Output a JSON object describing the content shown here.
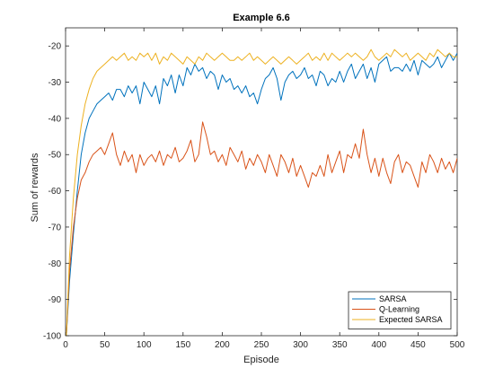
{
  "chart_data": {
    "type": "line",
    "title": "Example 6.6",
    "xlabel": "Episode",
    "ylabel": "Sum of rewards",
    "xlim": [
      0,
      500
    ],
    "ylim": [
      -100,
      -15
    ],
    "xticks": [
      0,
      50,
      100,
      150,
      200,
      250,
      300,
      350,
      400,
      450,
      500
    ],
    "yticks": [
      -100,
      -90,
      -80,
      -70,
      -60,
      -50,
      -40,
      -30,
      -20
    ],
    "grid": false,
    "legend_position": "bottom-right",
    "series": [
      {
        "name": "SARSA",
        "color": "#0072BD",
        "x": [
          1,
          5,
          10,
          15,
          20,
          25,
          30,
          35,
          40,
          45,
          50,
          55,
          60,
          65,
          70,
          75,
          80,
          85,
          90,
          95,
          100,
          105,
          110,
          115,
          120,
          125,
          130,
          135,
          140,
          145,
          150,
          155,
          160,
          165,
          170,
          175,
          180,
          185,
          190,
          195,
          200,
          205,
          210,
          215,
          220,
          225,
          230,
          235,
          240,
          245,
          250,
          255,
          260,
          265,
          270,
          275,
          280,
          285,
          290,
          295,
          300,
          305,
          310,
          315,
          320,
          325,
          330,
          335,
          340,
          345,
          350,
          355,
          360,
          365,
          370,
          375,
          380,
          385,
          390,
          395,
          400,
          405,
          410,
          415,
          420,
          425,
          430,
          435,
          440,
          445,
          450,
          455,
          460,
          465,
          470,
          475,
          480,
          485,
          490,
          495,
          500
        ],
        "y": [
          -100,
          -85,
          -72,
          -60,
          -50,
          -44,
          -40,
          -38,
          -36,
          -35,
          -34,
          -33,
          -35,
          -32,
          -32,
          -34,
          -31,
          -33,
          -31,
          -36,
          -30,
          -32,
          -34,
          -31,
          -36,
          -29,
          -31,
          -28,
          -33,
          -28,
          -31,
          -26,
          -28,
          -25,
          -27,
          -26,
          -29,
          -27,
          -28,
          -32,
          -28,
          -30,
          -29,
          -32,
          -31,
          -33,
          -31,
          -34,
          -33,
          -36,
          -32,
          -29,
          -28,
          -26,
          -29,
          -35,
          -30,
          -28,
          -27,
          -29,
          -28,
          -26,
          -29,
          -28,
          -31,
          -27,
          -28,
          -31,
          -29,
          -30,
          -27,
          -30,
          -27,
          -25,
          -29,
          -27,
          -25,
          -29,
          -26,
          -30,
          -25,
          -24,
          -23,
          -27,
          -26,
          -26,
          -27,
          -25,
          -27,
          -24,
          -28,
          -24,
          -25,
          -26,
          -25,
          -23,
          -26,
          -24,
          -22,
          -24,
          -22
        ]
      },
      {
        "name": "Q-Learning",
        "color": "#D95319",
        "x": [
          1,
          5,
          10,
          15,
          20,
          25,
          30,
          35,
          40,
          45,
          50,
          55,
          60,
          65,
          70,
          75,
          80,
          85,
          90,
          95,
          100,
          105,
          110,
          115,
          120,
          125,
          130,
          135,
          140,
          145,
          150,
          155,
          160,
          165,
          170,
          175,
          180,
          185,
          190,
          195,
          200,
          205,
          210,
          215,
          220,
          225,
          230,
          235,
          240,
          245,
          250,
          255,
          260,
          265,
          270,
          275,
          280,
          285,
          290,
          295,
          300,
          305,
          310,
          315,
          320,
          325,
          330,
          335,
          340,
          345,
          350,
          355,
          360,
          365,
          370,
          375,
          380,
          385,
          390,
          395,
          400,
          405,
          410,
          415,
          420,
          425,
          430,
          435,
          440,
          445,
          450,
          455,
          460,
          465,
          470,
          475,
          480,
          485,
          490,
          495,
          500
        ],
        "y": [
          -100,
          -82,
          -70,
          -62,
          -57,
          -55,
          -52,
          -50,
          -49,
          -48,
          -50,
          -47,
          -44,
          -50,
          -53,
          -49,
          -52,
          -50,
          -55,
          -50,
          -53,
          -51,
          -50,
          -52,
          -49,
          -53,
          -50,
          -51,
          -48,
          -52,
          -51,
          -49,
          -46,
          -52,
          -50,
          -41,
          -45,
          -50,
          -49,
          -52,
          -50,
          -53,
          -48,
          -50,
          -52,
          -49,
          -54,
          -51,
          -53,
          -50,
          -52,
          -55,
          -50,
          -53,
          -56,
          -50,
          -52,
          -55,
          -51,
          -56,
          -53,
          -56,
          -59,
          -55,
          -56,
          -53,
          -56,
          -50,
          -55,
          -52,
          -49,
          -55,
          -50,
          -51,
          -47,
          -51,
          -43,
          -50,
          -55,
          -51,
          -56,
          -51,
          -55,
          -58,
          -52,
          -50,
          -55,
          -52,
          -53,
          -56,
          -59,
          -52,
          -55,
          -50,
          -52,
          -55,
          -51,
          -54,
          -52,
          -55,
          -51
        ]
      },
      {
        "name": "Expected SARSA",
        "color": "#EDB120",
        "x": [
          1,
          5,
          10,
          15,
          20,
          25,
          30,
          35,
          40,
          45,
          50,
          55,
          60,
          65,
          70,
          75,
          80,
          85,
          90,
          95,
          100,
          105,
          110,
          115,
          120,
          125,
          130,
          135,
          140,
          145,
          150,
          155,
          160,
          165,
          170,
          175,
          180,
          185,
          190,
          195,
          200,
          205,
          210,
          215,
          220,
          225,
          230,
          235,
          240,
          245,
          250,
          255,
          260,
          265,
          270,
          275,
          280,
          285,
          290,
          295,
          300,
          305,
          310,
          315,
          320,
          325,
          330,
          335,
          340,
          345,
          350,
          355,
          360,
          365,
          370,
          375,
          380,
          385,
          390,
          395,
          400,
          405,
          410,
          415,
          420,
          425,
          430,
          435,
          440,
          445,
          450,
          455,
          460,
          465,
          470,
          475,
          480,
          485,
          490,
          495,
          500
        ],
        "y": [
          -100,
          -78,
          -62,
          -50,
          -42,
          -36,
          -32,
          -29,
          -27,
          -26,
          -25,
          -24,
          -23,
          -24,
          -23,
          -22,
          -24,
          -23,
          -24,
          -22,
          -23,
          -22,
          -24,
          -22,
          -25,
          -23,
          -24,
          -22,
          -23,
          -24,
          -25,
          -23,
          -24,
          -25,
          -23,
          -24,
          -22,
          -23,
          -24,
          -23,
          -22,
          -23,
          -24,
          -24,
          -23,
          -24,
          -23,
          -22,
          -24,
          -23,
          -24,
          -25,
          -24,
          -23,
          -24,
          -25,
          -24,
          -23,
          -24,
          -25,
          -24,
          -23,
          -22,
          -24,
          -23,
          -24,
          -22,
          -24,
          -22,
          -23,
          -24,
          -23,
          -22,
          -23,
          -22,
          -23,
          -24,
          -23,
          -21,
          -23,
          -24,
          -23,
          -22,
          -23,
          -21,
          -22,
          -23,
          -22,
          -24,
          -23,
          -22,
          -23,
          -24,
          -22,
          -23,
          -21,
          -22,
          -23,
          -22,
          -23,
          -23
        ]
      }
    ]
  }
}
